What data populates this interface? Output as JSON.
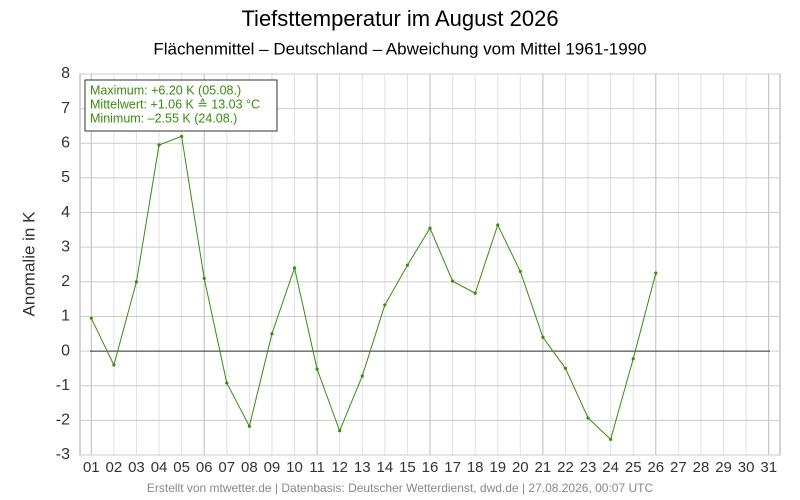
{
  "chart_data": {
    "type": "line",
    "title": "Tiefsttemperatur im August 2026",
    "subtitle": "Flächenmittel – Deutschland – Abweichung vom Mittel 1961-1990",
    "y_label": "Anomalie in K",
    "annotations": [
      "Maximum: +6.20 K  (05.08.)",
      "Mittelwert: +1.06 K  ≙  13.03 °C",
      "Minimum:  –2.55 K  (24.08.)"
    ],
    "footer": "Erstellt von mtwetter.de | Datenbasis: Deutscher Wetterdienst, dwd.de | 27.08.2026, 00:07 UTC",
    "categories": [
      "01",
      "02",
      "03",
      "04",
      "05",
      "06",
      "07",
      "08",
      "09",
      "10",
      "11",
      "12",
      "13",
      "14",
      "15",
      "16",
      "17",
      "18",
      "19",
      "20",
      "21",
      "22",
      "23",
      "24",
      "25",
      "26",
      "27",
      "28",
      "29",
      "30",
      "31"
    ],
    "series": [
      {
        "name": "Anomalie",
        "color": "#3a8c10",
        "values": [
          0.95,
          -0.4,
          2.0,
          5.95,
          6.2,
          2.1,
          -0.92,
          -2.17,
          0.5,
          2.4,
          -0.52,
          -2.3,
          -0.72,
          1.33,
          2.48,
          3.55,
          2.02,
          1.67,
          3.64,
          2.3,
          0.4,
          -0.5,
          -1.93,
          -2.55,
          -0.22,
          2.25,
          null,
          null,
          null,
          null,
          null
        ]
      }
    ],
    "ylim": [
      -3,
      8
    ],
    "yticks": [
      -3,
      -2,
      -1,
      0,
      1,
      2,
      3,
      4,
      5,
      6,
      7,
      8
    ],
    "grid": true
  }
}
